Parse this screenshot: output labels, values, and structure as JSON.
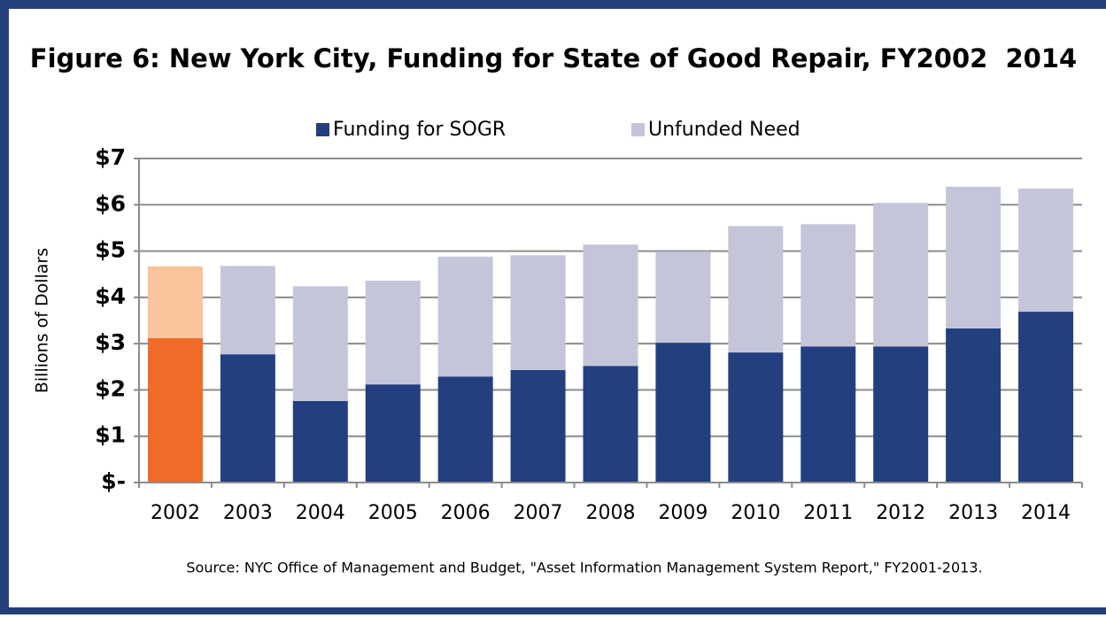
{
  "chart_data": {
    "type": "stacked_bar",
    "title": "Figure 6: New York City, Funding for State of Good Repair, FY2002  2014",
    "ylabel": "Billions of Dollars",
    "source": "Source: NYC Office of Management and Budget, \"Asset Information Management System Report,\" FY2001-2013.",
    "categories": [
      "2002",
      "2003",
      "2004",
      "2005",
      "2006",
      "2007",
      "2008",
      "2009",
      "2010",
      "2011",
      "2012",
      "2013",
      "2014"
    ],
    "series": [
      {
        "name": "Funding for SOGR",
        "color": "#233f7f",
        "point_colors": [
          "#f26a27",
          null,
          null,
          null,
          null,
          null,
          null,
          null,
          null,
          null,
          null,
          null,
          null
        ],
        "values": [
          3.12,
          2.77,
          1.76,
          2.12,
          2.29,
          2.43,
          2.52,
          3.02,
          2.81,
          2.94,
          2.94,
          3.33,
          3.69
        ]
      },
      {
        "name": "Unfunded Need",
        "color": "#c5c5da",
        "point_colors": [
          "#f9c39b",
          null,
          null,
          null,
          null,
          null,
          null,
          null,
          null,
          null,
          null,
          null,
          null
        ],
        "values": [
          1.55,
          1.91,
          2.48,
          2.24,
          2.59,
          2.48,
          2.62,
          1.97,
          2.73,
          2.64,
          3.1,
          3.06,
          2.66
        ]
      }
    ],
    "ylim": [
      0,
      7
    ],
    "yticks": [
      {
        "value": 0,
        "label": "$-"
      },
      {
        "value": 1,
        "label": "$1"
      },
      {
        "value": 2,
        "label": "$2"
      },
      {
        "value": 3,
        "label": "$3"
      },
      {
        "value": 4,
        "label": "$4"
      },
      {
        "value": 5,
        "label": "$5"
      },
      {
        "value": 6,
        "label": "$6"
      },
      {
        "value": 7,
        "label": "$7"
      }
    ],
    "grid": true,
    "legend": "top"
  }
}
